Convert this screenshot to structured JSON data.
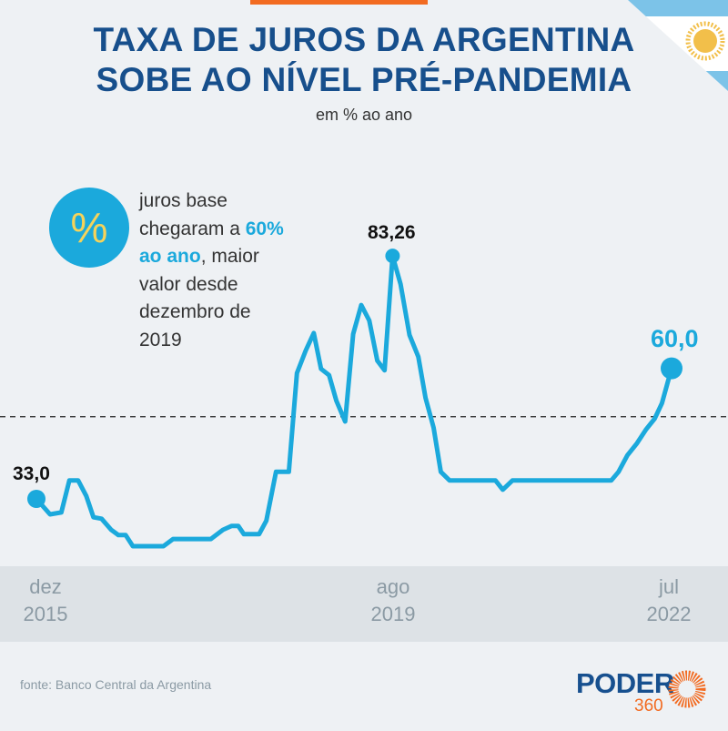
{
  "header": {
    "title_line1": "TAXA DE JUROS DA ARGENTINA",
    "title_line2": "SOBE AO NÍVEL PRÉ-PANDEMIA",
    "subtitle": "em % ao ano"
  },
  "note": {
    "icon": "percent-icon",
    "icon_glyph": "%",
    "text_before": "juros base chegaram a ",
    "highlight": "60% ao ano",
    "text_after": ", maior valor desde dezembro de 2019"
  },
  "colors": {
    "line": "#1ba9dc",
    "title": "#174f8c",
    "accent": "#f26b21"
  },
  "chart_data": {
    "type": "line",
    "title": "Taxa de juros da Argentina",
    "ylabel": "% ao ano",
    "x_unit": "months since dez 2015",
    "xlim": [
      0,
      79
    ],
    "ylim": [
      23,
      83.26
    ],
    "grid": false,
    "reference_line": 50,
    "x_ticks": [
      {
        "x": 0,
        "month": "dez",
        "year": "2015"
      },
      {
        "x": 44,
        "month": "ago",
        "year": "2019"
      },
      {
        "x": 79,
        "month": "jul",
        "year": "2022"
      }
    ],
    "series": [
      {
        "name": "Taxa de juros",
        "points": [
          [
            0,
            33.0
          ],
          [
            1.7,
            29.8
          ],
          [
            3.1,
            30.2
          ],
          [
            4.1,
            36.8
          ],
          [
            5.2,
            36.8
          ],
          [
            6.2,
            33.6
          ],
          [
            7.1,
            29.2
          ],
          [
            8.1,
            28.9
          ],
          [
            9.3,
            26.6
          ],
          [
            10.2,
            25.5
          ],
          [
            11.1,
            25.5
          ],
          [
            12,
            23.2
          ],
          [
            15.8,
            23.2
          ],
          [
            17,
            24.7
          ],
          [
            21.7,
            24.7
          ],
          [
            23.2,
            26.6
          ],
          [
            24.3,
            27.4
          ],
          [
            25.1,
            27.4
          ],
          [
            25.8,
            25.7
          ],
          [
            27.7,
            25.7
          ],
          [
            28.6,
            28.5
          ],
          [
            29.8,
            38.6
          ],
          [
            31.4,
            38.6
          ],
          [
            32.4,
            59
          ],
          [
            33.5,
            63.7
          ],
          [
            34.5,
            67.3
          ],
          [
            35.4,
            59.9
          ],
          [
            36.4,
            58.6
          ],
          [
            37.3,
            53.3
          ],
          [
            38.4,
            49
          ],
          [
            39.4,
            67.1
          ],
          [
            40.4,
            73.1
          ],
          [
            41.4,
            69.9
          ],
          [
            42.4,
            61.6
          ],
          [
            43.3,
            59.6
          ],
          [
            44.3,
            83.26
          ],
          [
            45.3,
            77.4
          ],
          [
            46.4,
            66.9
          ],
          [
            47.5,
            62.4
          ],
          [
            48.4,
            53.9
          ],
          [
            49.4,
            47.7
          ],
          [
            50.3,
            38.6
          ],
          [
            51.4,
            36.8
          ],
          [
            57.1,
            36.8
          ],
          [
            58,
            34.9
          ],
          [
            59.2,
            36.8
          ],
          [
            71.5,
            36.8
          ],
          [
            72.4,
            38.6
          ],
          [
            73.5,
            42
          ],
          [
            74.7,
            44.5
          ],
          [
            75.8,
            47.3
          ],
          [
            76.9,
            49.6
          ],
          [
            77.8,
            52.8
          ],
          [
            79,
            60.0
          ]
        ]
      }
    ],
    "annotations": [
      {
        "x": 0,
        "y": 33.0,
        "text": "33,0"
      },
      {
        "x": 44.3,
        "y": 83.26,
        "text": "83,26"
      },
      {
        "x": 79,
        "y": 60.0,
        "text": "60,0"
      }
    ]
  },
  "footer": {
    "source": "fonte: Banco Central da Argentina",
    "logo_word": "PODER",
    "logo_number": "360"
  }
}
